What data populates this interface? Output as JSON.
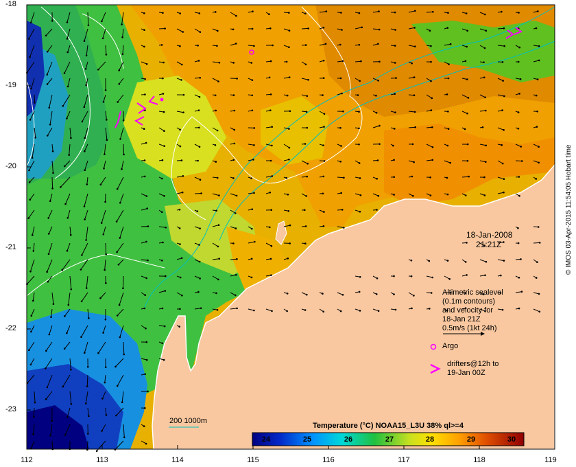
{
  "map": {
    "date": "18-Jan-2008",
    "time": "21:21Z",
    "lat_ticks": [
      "-18",
      "-19",
      "-20",
      "-21",
      "-22",
      "-23"
    ],
    "lon_ticks": [
      "112",
      "113",
      "114",
      "115",
      "116",
      "117",
      "118",
      "119"
    ],
    "lat_range": [
      -23.5,
      -18
    ],
    "lon_range": [
      112,
      119
    ],
    "land_color": "#f9c8a0",
    "credit": "© IMOS 03-Apr-2015 11:54:05 Hobart time"
  },
  "legend": {
    "altimetric": [
      "Altimetric sealevel",
      "(0.1m contours)",
      "and velocity for",
      "18-Jan 21Z",
      "0.5m/s (1kt 24h)"
    ],
    "argo": "Argo",
    "drifters": [
      "drifters@12h to",
      "19-Jan 00Z"
    ],
    "depth_label": "200  1000m",
    "accent": "#ff00ff",
    "depth_color": "#00c0c0"
  },
  "colorbar": {
    "title": "Temperature (°C) NOAA15_L3U 38% ql>=4",
    "ticks": [
      "24",
      "25",
      "26",
      "27",
      "28",
      "29",
      "30"
    ],
    "range": [
      23.6,
      30.3
    ]
  }
}
